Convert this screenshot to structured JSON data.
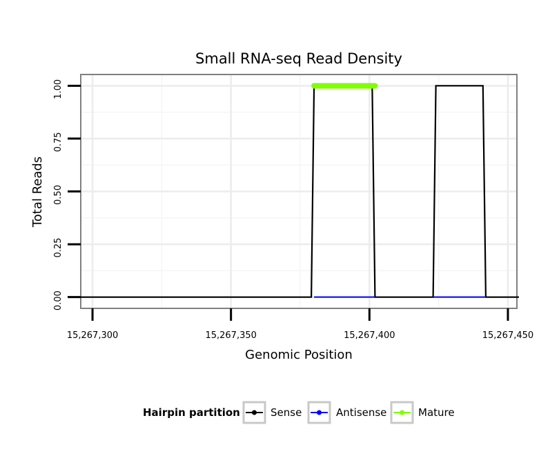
{
  "chart_data": {
    "type": "line",
    "title": "Small RNA-seq Read Density",
    "xlabel": "Genomic Position",
    "ylabel": "Total Reads",
    "xlim": [
      15267296,
      15267453
    ],
    "ylim": [
      -0.05,
      1.05
    ],
    "x_ticks": [
      15267300,
      15267350,
      15267400,
      15267450
    ],
    "x_tick_labels": [
      "15,267,300",
      "15,267,350",
      "15,267,400",
      "15,267,450"
    ],
    "y_ticks": [
      0,
      0.25,
      0.5,
      0.75,
      1.0
    ],
    "y_tick_labels": [
      "0.00",
      "0.25",
      "0.50",
      "0.75",
      "1.00"
    ],
    "series": [
      {
        "name": "Sense",
        "color": "#000000",
        "x": [
          15267294,
          15267379,
          15267380,
          15267401,
          15267402,
          15267423,
          15267424,
          15267441,
          15267442,
          15267454
        ],
        "y": [
          0,
          0,
          1,
          1,
          0,
          0,
          1,
          1,
          0,
          0
        ]
      },
      {
        "name": "Antisense",
        "color": "#0000ff",
        "x": [
          15267380,
          15267402,
          15267423,
          15267442
        ],
        "y": [
          0,
          0,
          0,
          0
        ],
        "segments": [
          [
            0,
            1
          ],
          [
            2,
            3
          ]
        ]
      },
      {
        "name": "Mature",
        "color": "#7fff00",
        "x": [
          15267380,
          15267402
        ],
        "y": [
          1,
          1
        ]
      }
    ],
    "legend": {
      "title": "Hairpin partition",
      "placement": "bottom",
      "entries": [
        {
          "label": "Sense",
          "color": "#000000"
        },
        {
          "label": "Antisense",
          "color": "#0000ff"
        },
        {
          "label": "Mature",
          "color": "#7fff00"
        }
      ]
    }
  }
}
